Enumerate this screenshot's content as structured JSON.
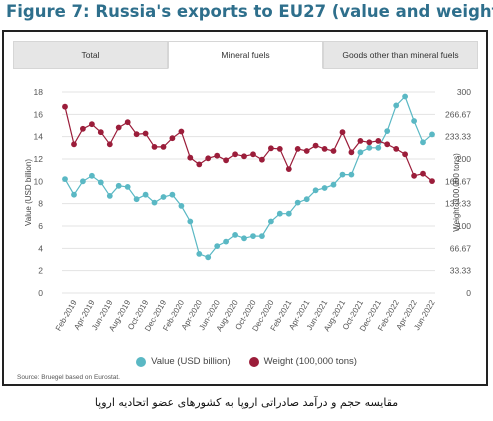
{
  "figure_title": "Figure 7: Russia's exports to EU27 (value and weight)",
  "tabs": [
    {
      "label": "Total",
      "active": false
    },
    {
      "label": "Mineral fuels",
      "active": true
    },
    {
      "label": "Goods other than mineral fuels",
      "active": false
    }
  ],
  "source": "Source: Bruegel based on Eurostat.",
  "caption": "مقایسه حجم و درآمد صادراتی اروپا به کشورهای عضو اتحادیه اروپا",
  "colors": {
    "value": "#5ab8c4",
    "weight": "#9b1d3a",
    "title": "#2e6f8c"
  },
  "chart_data": {
    "type": "line",
    "title": "",
    "x": [
      "Jan-2019",
      "Feb-2019",
      "Mar-2019",
      "Apr-2019",
      "May-2019",
      "Jun-2019",
      "Jul-2019",
      "Aug-2019",
      "Sep-2019",
      "Oct-2019",
      "Nov-2019",
      "Dec-2019",
      "Jan-2020",
      "Feb-2020",
      "Mar-2020",
      "Apr-2020",
      "May-2020",
      "Jun-2020",
      "Jul-2020",
      "Aug-2020",
      "Sep-2020",
      "Oct-2020",
      "Nov-2020",
      "Dec-2020",
      "Jan-2021",
      "Feb-2021",
      "Mar-2021",
      "Apr-2021",
      "May-2021",
      "Jun-2021",
      "Jul-2021",
      "Aug-2021",
      "Sep-2021",
      "Oct-2021",
      "Nov-2021",
      "Dec-2021",
      "Jan-2022",
      "Feb-2022",
      "Mar-2022",
      "Apr-2022",
      "May-2022",
      "Jun-2022"
    ],
    "xtick_labels": [
      "Feb-2019",
      "Apr-2019",
      "Jun-2019",
      "Aug-2019",
      "Oct-2019",
      "Dec-2019",
      "Feb-2020",
      "Apr-2020",
      "Jun-2020",
      "Aug-2020",
      "Oct-2020",
      "Dec-2020",
      "Feb-2021",
      "Apr-2021",
      "Jun-2021",
      "Aug-2021",
      "Oct-2021",
      "Dec-2021",
      "Feb-2022",
      "Apr-2022",
      "Jun-2022"
    ],
    "series": [
      {
        "name": "Value (USD billion)",
        "axis": "left",
        "values": [
          10.2,
          8.8,
          10.0,
          10.5,
          9.9,
          8.7,
          9.6,
          9.5,
          8.4,
          8.8,
          8.1,
          8.6,
          8.8,
          7.8,
          6.4,
          3.5,
          3.2,
          4.2,
          4.6,
          5.2,
          4.9,
          5.1,
          5.1,
          6.4,
          7.1,
          7.1,
          8.1,
          8.4,
          9.2,
          9.4,
          9.7,
          10.6,
          10.6,
          12.6,
          13.0,
          13.0,
          14.5,
          16.8,
          17.6,
          15.4,
          13.5,
          14.2
        ]
      },
      {
        "name": "Weight (100,000 tons)",
        "axis": "right",
        "values": [
          278,
          222,
          245,
          252,
          240,
          222,
          247,
          255,
          237,
          238,
          218,
          218,
          231,
          241,
          202,
          192,
          201,
          205,
          198,
          207,
          204,
          207,
          199,
          216,
          215,
          185,
          215,
          212,
          220,
          215,
          212,
          240,
          210,
          227,
          225,
          227,
          222,
          215,
          207,
          175,
          178,
          167
        ]
      }
    ],
    "ylabel": "Value (USD billion)",
    "ylabel_right": "Weight (100,000 tons)",
    "ylim": [
      0,
      18
    ],
    "ylim_right": [
      0,
      300
    ],
    "yticks": [
      0,
      2,
      4,
      6,
      8,
      10,
      12,
      14,
      16,
      18
    ],
    "yticks_right": [
      "0",
      "33.33",
      "66.67",
      "100",
      "133.33",
      "166.67",
      "200",
      "233.33",
      "266.67",
      "300"
    ],
    "grid": true,
    "legend": "bottom"
  }
}
